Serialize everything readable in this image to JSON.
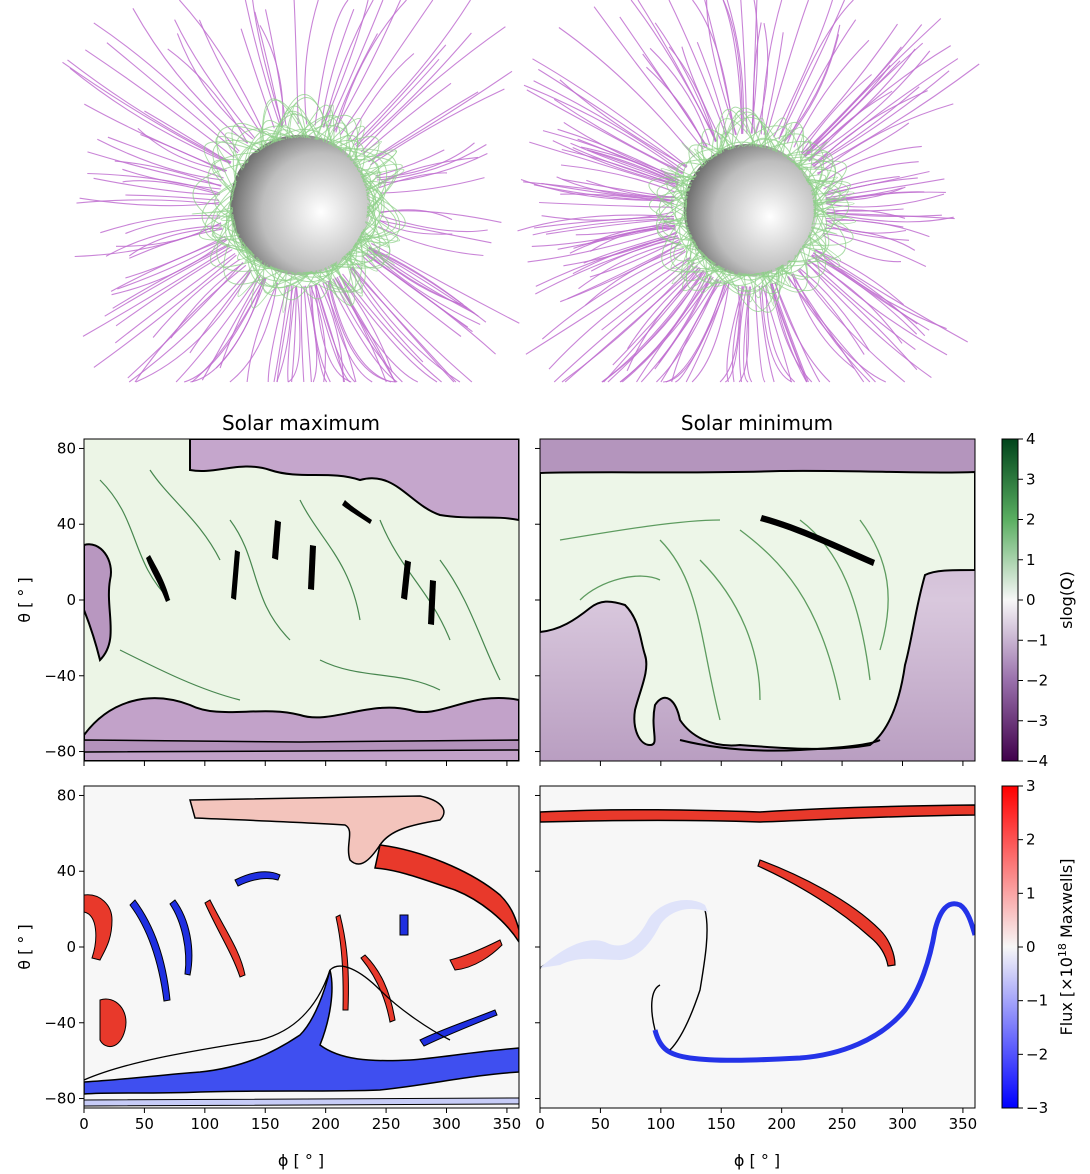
{
  "chart_data": [
    {
      "type": "heatmap",
      "panel": "top-left",
      "title": "Solar maximum",
      "xlabel": "",
      "ylabel": "θ [ ° ]",
      "xlim": [
        0,
        360
      ],
      "ylim": [
        -85,
        85
      ],
      "yticks": [
        "80",
        "40",
        "0",
        "−40",
        "−80"
      ],
      "yticks_values": [
        80,
        40,
        0,
        -40,
        -80
      ],
      "xticks_values": [
        0,
        50,
        100,
        150,
        200,
        250,
        300,
        350
      ],
      "colormap": "PRGn",
      "field": "slog(Q)"
    },
    {
      "type": "heatmap",
      "panel": "top-right",
      "title": "Solar minimum",
      "xlabel": "",
      "ylabel": "",
      "xlim": [
        0,
        360
      ],
      "ylim": [
        -85,
        85
      ],
      "colormap": "PRGn",
      "field": "slog(Q)"
    },
    {
      "type": "heatmap",
      "panel": "bottom-left",
      "title": "",
      "xlabel": "ϕ [ ° ]",
      "ylabel": "θ [ ° ]",
      "xlim": [
        0,
        360
      ],
      "ylim": [
        -85,
        85
      ],
      "xticks": [
        "0",
        "50",
        "100",
        "150",
        "200",
        "250",
        "300",
        "350"
      ],
      "xticks_values": [
        0,
        50,
        100,
        150,
        200,
        250,
        300,
        350
      ],
      "yticks": [
        "80",
        "40",
        "0",
        "−40",
        "−80"
      ],
      "yticks_values": [
        80,
        40,
        0,
        -40,
        -80
      ],
      "colormap": "bwr",
      "field": "Flux"
    },
    {
      "type": "heatmap",
      "panel": "bottom-right",
      "title": "",
      "xlabel": "ϕ [ ° ]",
      "ylabel": "",
      "xlim": [
        0,
        360
      ],
      "ylim": [
        -85,
        85
      ],
      "xticks": [
        "0",
        "50",
        "100",
        "150",
        "200",
        "250",
        "300",
        "350"
      ],
      "xticks_values": [
        0,
        50,
        100,
        150,
        200,
        250,
        300,
        350
      ],
      "colormap": "bwr",
      "field": "Flux"
    }
  ],
  "colorbars": {
    "q": {
      "label": "slog(Q)",
      "range": [
        -4,
        4
      ],
      "ticks": [
        "4",
        "3",
        "2",
        "1",
        "0",
        "−1",
        "−2",
        "−3",
        "−4"
      ],
      "ticks_values": [
        4,
        3,
        2,
        1,
        0,
        -1,
        -2,
        -3,
        -4
      ],
      "colors": [
        "#40004b",
        "#9970ab",
        "#f7f7f7",
        "#5aae61",
        "#00441b"
      ]
    },
    "flux": {
      "label_prefix": "Flux [×10",
      "label_sup": "18",
      "label_suffix": " Maxwells]",
      "range": [
        -3,
        3
      ],
      "ticks": [
        "3",
        "2",
        "1",
        "0",
        "−1",
        "−2",
        "−3"
      ],
      "ticks_values": [
        3,
        2,
        1,
        0,
        -1,
        -2,
        -3
      ],
      "colors": [
        "#0000ff",
        "#f7f7f7",
        "#ff0000"
      ]
    }
  },
  "field_line_renderings": {
    "line_colors": {
      "open": "#c06fd0",
      "closed": "#8fd08a"
    }
  },
  "colors": {
    "negative_dark": "#5b2a6b",
    "negative_fill": "#c8a8cf",
    "positive_fill": "#e9f3e3",
    "boundary": "#000000",
    "flux_pos": "#e8392b",
    "flux_neg": "#1f2fe0"
  }
}
